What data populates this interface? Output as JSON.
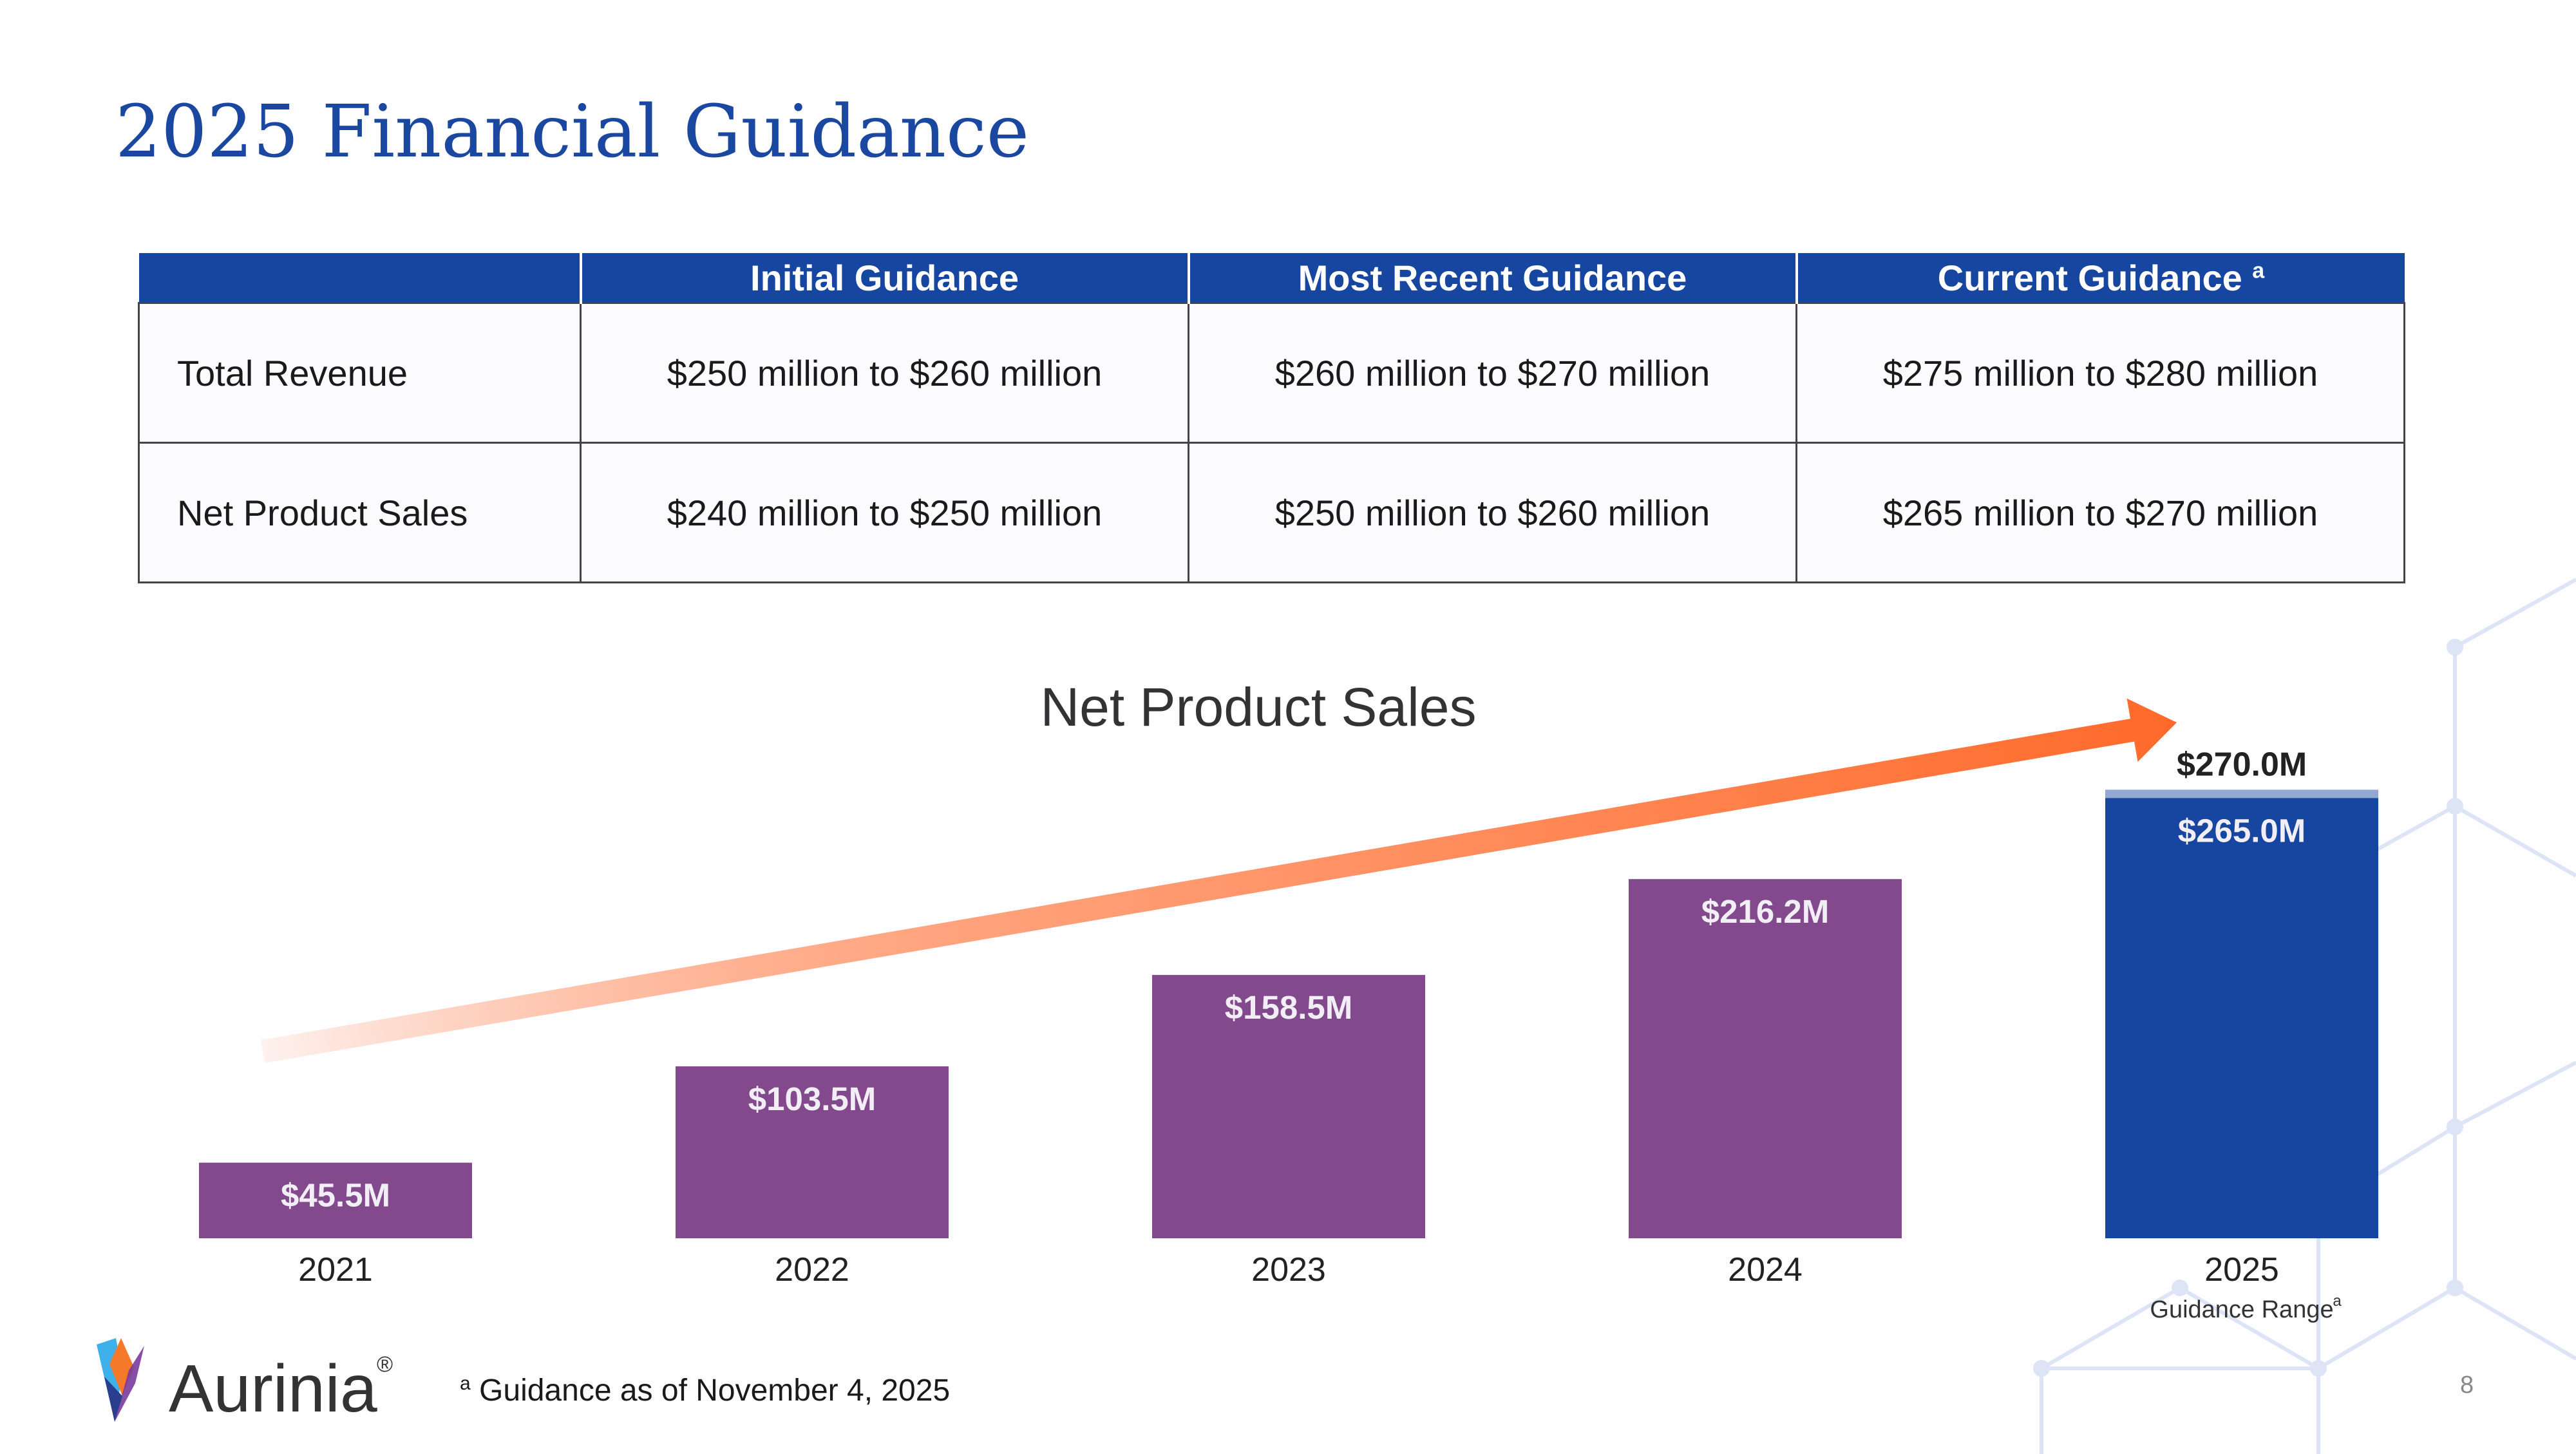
{
  "title": "2025 Financial Guidance",
  "table": {
    "headers": [
      "",
      "Initial Guidance",
      "Most Recent Guidance",
      "Current Guidance"
    ],
    "header_footnote": "a",
    "rows": [
      {
        "label": "Total Revenue",
        "values": [
          "$250 million to $260 million",
          "$260 million to $270 million",
          "$275 million to $280 million"
        ]
      },
      {
        "label": "Net Product Sales",
        "values": [
          "$240 million to $250 million",
          "$250 million to $260 million",
          "$265 million to $270 million"
        ]
      }
    ]
  },
  "chart_data": {
    "type": "bar",
    "title": "Net Product Sales",
    "categories": [
      "2021",
      "2022",
      "2023",
      "2024",
      "2025"
    ],
    "values": [
      45.5,
      103.5,
      158.5,
      216.2,
      265.0
    ],
    "data_labels": [
      "$45.5M",
      "$103.5M",
      "$158.5M",
      "$216.2M",
      "$265.0M"
    ],
    "range_2025": {
      "low": 265.0,
      "high": 270.0,
      "high_label": "$270.0M",
      "sublabel": "Guidance Range",
      "footnote": "a"
    },
    "colors": {
      "historical": "#824a8c",
      "guidance": "#1646a0",
      "range": "#93a8d0",
      "trend_arrow": "#ff6a2a"
    },
    "trend_arrow": true,
    "grid": false
  },
  "footnote": {
    "marker": "a",
    "text": "Guidance as of November 4, 2025"
  },
  "logo": {
    "text": "Aurinia",
    "reg": "®"
  },
  "page_number": "8"
}
